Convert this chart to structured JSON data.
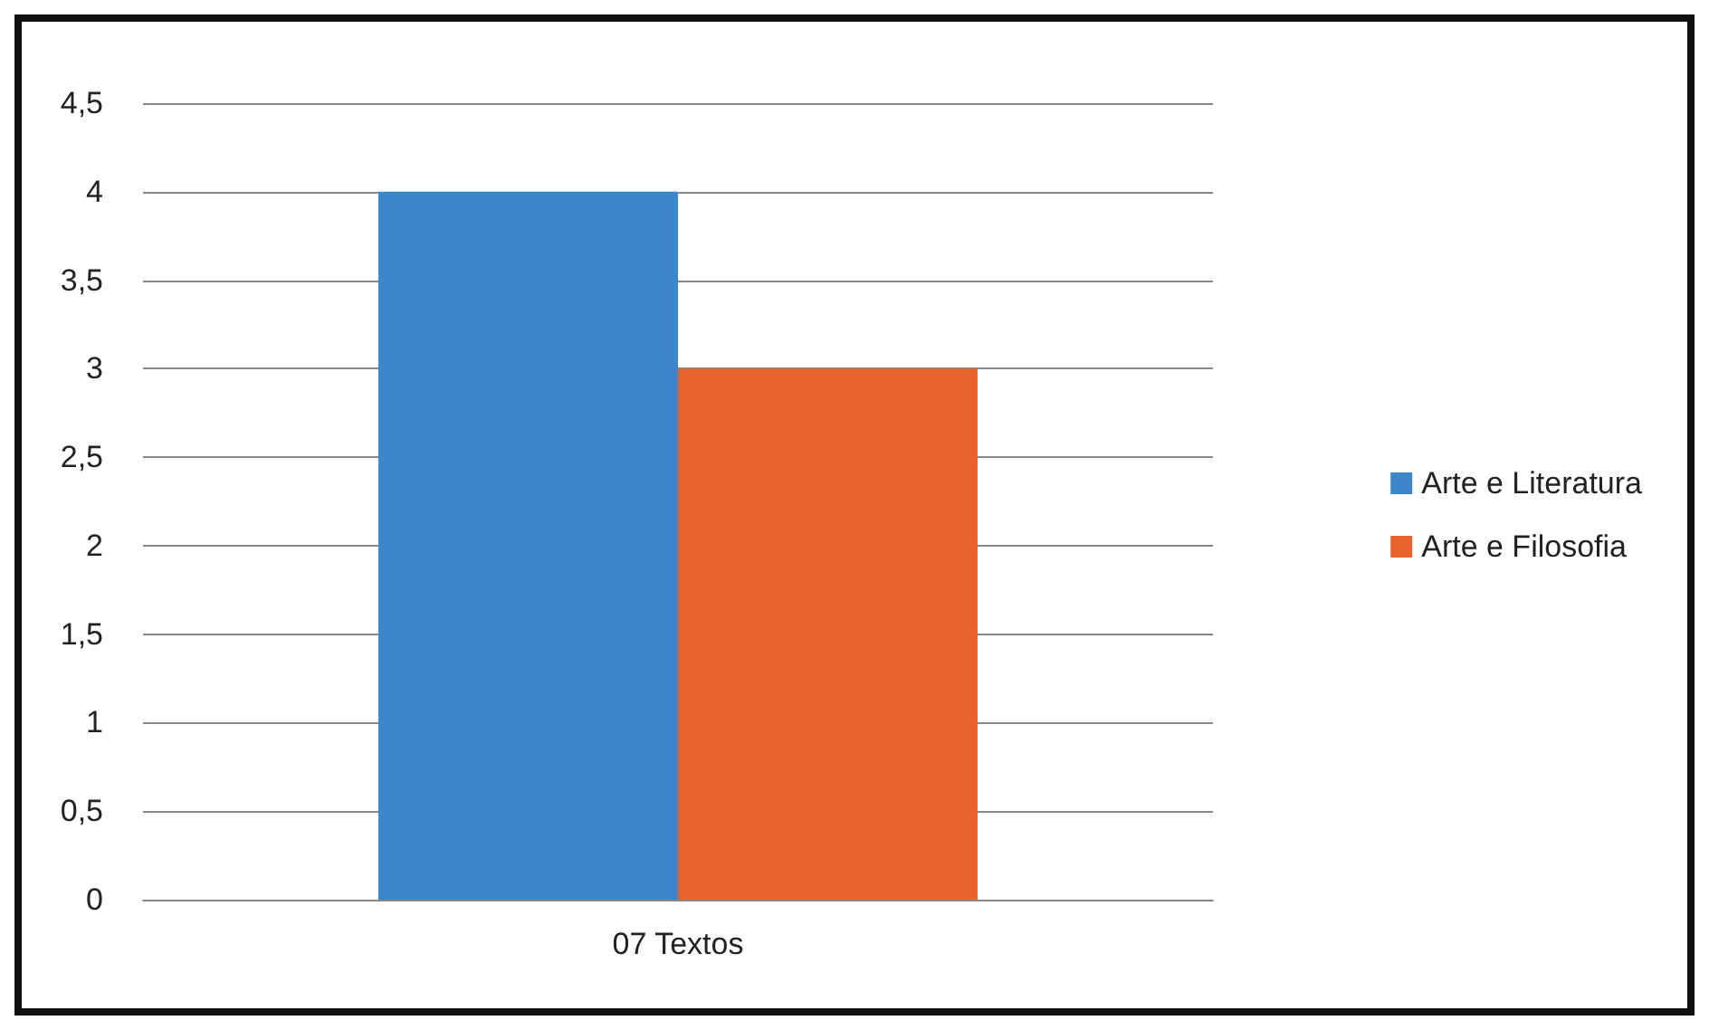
{
  "chart_data": {
    "type": "bar",
    "categories": [
      "07 Textos"
    ],
    "series": [
      {
        "name": "Arte e Literatura",
        "color": "#3a86c8",
        "values": [
          4
        ]
      },
      {
        "name": "Arte e Filosofia",
        "color": "#e8632a",
        "values": [
          3
        ]
      }
    ],
    "ylim": [
      0,
      4.5
    ],
    "yticks": [
      {
        "value": 0,
        "label": "0"
      },
      {
        "value": 0.5,
        "label": "0,5"
      },
      {
        "value": 1,
        "label": "1"
      },
      {
        "value": 1.5,
        "label": "1,5"
      },
      {
        "value": 2,
        "label": "2"
      },
      {
        "value": 2.5,
        "label": "2,5"
      },
      {
        "value": 3,
        "label": "3"
      },
      {
        "value": 3.5,
        "label": "3,5"
      },
      {
        "value": 4,
        "label": "4"
      },
      {
        "value": 4.5,
        "label": "4,5"
      }
    ],
    "grid": "y",
    "legend": "right"
  }
}
